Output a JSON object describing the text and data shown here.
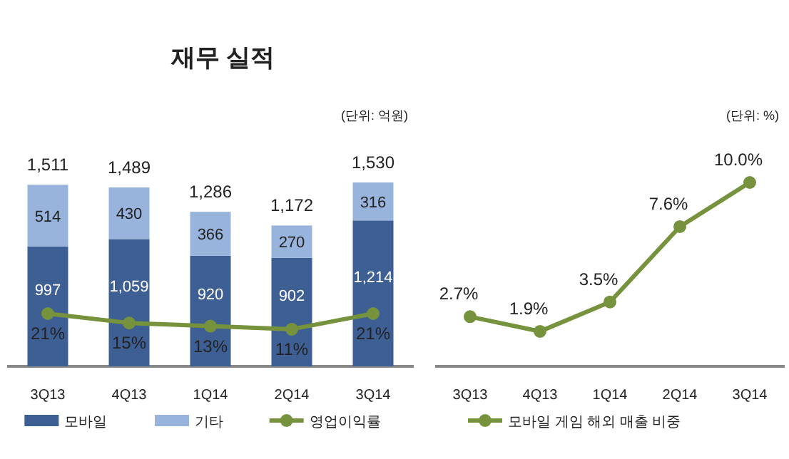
{
  "chart_data": [
    {
      "type": "bar",
      "title": "재무 실적",
      "subtitle": "(단위: 억원)",
      "stacked": true,
      "categories": [
        "3Q13",
        "4Q13",
        "1Q14",
        "2Q14",
        "3Q14"
      ],
      "series": [
        {
          "name": "모바일",
          "color": "#3d5f94",
          "values": [
            997,
            1059,
            920,
            902,
            1214
          ],
          "value_labels": [
            "997",
            "1,059",
            "920",
            "902",
            "1,214"
          ]
        },
        {
          "name": "기타",
          "color": "#98b4dc",
          "values": [
            514,
            430,
            366,
            270,
            316
          ],
          "value_labels": [
            "514",
            "430",
            "366",
            "270",
            "316"
          ]
        },
        {
          "name": "영업이익률",
          "type": "line",
          "axis": "y2",
          "color": "#76923c",
          "values": [
            21,
            15,
            13,
            11,
            21
          ],
          "value_labels": [
            "21%",
            "15%",
            "13%",
            "11%",
            "21%"
          ]
        }
      ],
      "totals": [
        "1,511",
        "1,489",
        "1,286",
        "1,172",
        "1,530"
      ],
      "marker": "circle",
      "legend": "bottom"
    },
    {
      "type": "line",
      "subtitle": "(단위: %)",
      "categories": [
        "3Q13",
        "4Q13",
        "1Q14",
        "2Q14",
        "3Q14"
      ],
      "series": [
        {
          "name": "모바일 게임 해외 매출 비중",
          "color": "#76923c",
          "values": [
            2.7,
            1.9,
            3.5,
            7.6,
            10.0
          ],
          "value_labels": [
            "2.7%",
            "1.9%",
            "3.5%",
            "7.6%",
            "10.0%"
          ]
        }
      ],
      "marker": "circle",
      "legend": "bottom"
    }
  ]
}
